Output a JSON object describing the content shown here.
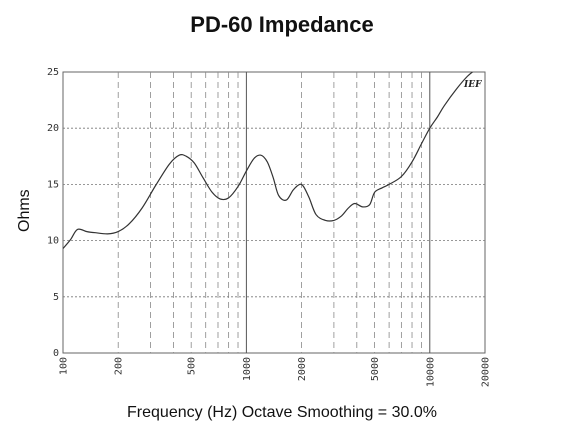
{
  "chart_data": {
    "type": "line",
    "title": "PD-60 Impedance",
    "xlabel": "Frequency (Hz) Octave Smoothing = 30.0%",
    "ylabel": "Ohms",
    "x_scale": "log",
    "xlim": [
      100,
      20000
    ],
    "ylim": [
      0,
      25
    ],
    "x_ticks": [
      "100",
      "200",
      "500",
      "1000",
      "2000",
      "5000",
      "10000",
      "20000"
    ],
    "y_ticks": [
      "0",
      "5",
      "10",
      "15",
      "20",
      "25"
    ],
    "grid": true,
    "logo_text": "IEF",
    "series": [
      {
        "x": [
          100,
          110,
          120,
          135,
          150,
          175,
          200,
          230,
          270,
          320,
          380,
          430,
          470,
          520,
          580,
          650,
          720,
          800,
          900,
          1000,
          1100,
          1200,
          1300,
          1400,
          1500,
          1650,
          1800,
          1950,
          2050,
          2200,
          2400,
          2700,
          3000,
          3300,
          3600,
          3900,
          4300,
          4700,
          5000,
          5500,
          6000,
          7000,
          8000,
          9000,
          10000,
          11000,
          12000,
          14000,
          16000,
          18000,
          20000
        ],
        "y": [
          9.3,
          10.1,
          11.0,
          10.8,
          10.7,
          10.6,
          10.8,
          11.5,
          12.9,
          14.9,
          16.8,
          17.6,
          17.5,
          16.9,
          15.6,
          14.3,
          13.7,
          13.8,
          14.8,
          16.2,
          17.3,
          17.6,
          17.0,
          15.6,
          14.0,
          13.6,
          14.5,
          15.0,
          14.8,
          13.8,
          12.3,
          11.8,
          11.8,
          12.2,
          12.9,
          13.3,
          13.0,
          13.2,
          14.3,
          14.7,
          15.0,
          15.7,
          17.0,
          18.6,
          20.0,
          21.0,
          22.0,
          23.5,
          24.6,
          25.3,
          26.0
        ]
      }
    ]
  }
}
